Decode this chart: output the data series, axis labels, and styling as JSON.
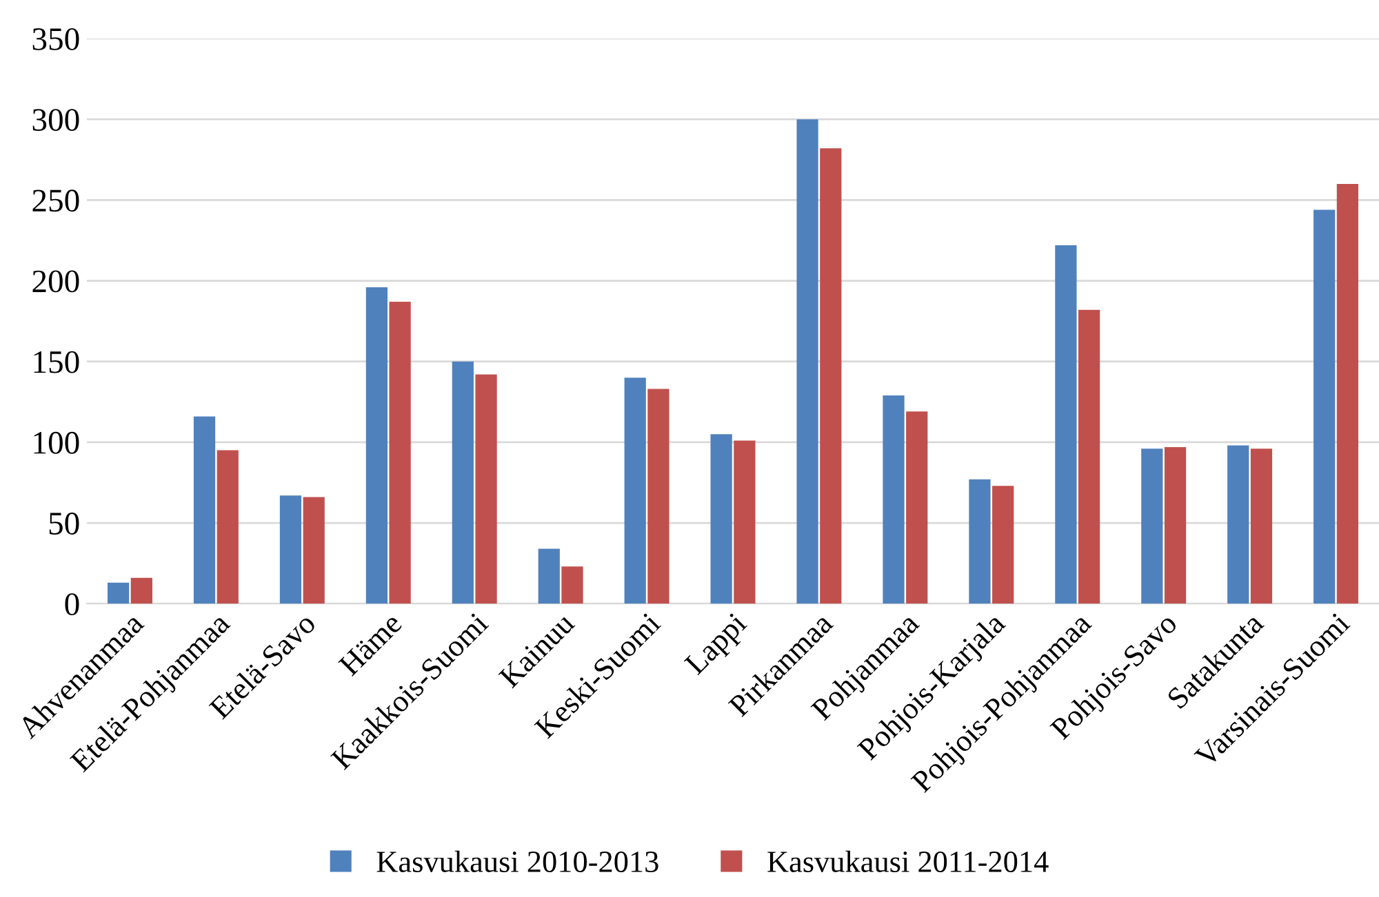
{
  "chart_data": {
    "type": "bar",
    "categories": [
      "Ahvenanmaa",
      "Etelä-Pohjanmaa",
      "Etelä-Savo",
      "Häme",
      "Kaakkois-Suomi",
      "Kainuu",
      "Keski-Suomi",
      "Lappi",
      "Pirkanmaa",
      "Pohjanmaa",
      "Pohjois-Karjala",
      "Pohjois-Pohjanmaa",
      "Pohjois-Savo",
      "Satakunta",
      "Varsinais-Suomi"
    ],
    "series": [
      {
        "name": "Kasvukausi 2010-2013",
        "color": "#4f81bd",
        "values": [
          13,
          116,
          67,
          196,
          150,
          34,
          140,
          105,
          300,
          129,
          77,
          222,
          96,
          98,
          244
        ]
      },
      {
        "name": "Kasvukausi 2011-2014",
        "color": "#c0504d",
        "values": [
          16,
          95,
          66,
          187,
          142,
          23,
          133,
          101,
          282,
          119,
          73,
          182,
          97,
          96,
          260
        ]
      }
    ],
    "ylim": [
      0,
      350
    ],
    "yticks": [
      0,
      50,
      100,
      150,
      200,
      250,
      300,
      350
    ],
    "grid": "y",
    "legend": "bottom"
  }
}
